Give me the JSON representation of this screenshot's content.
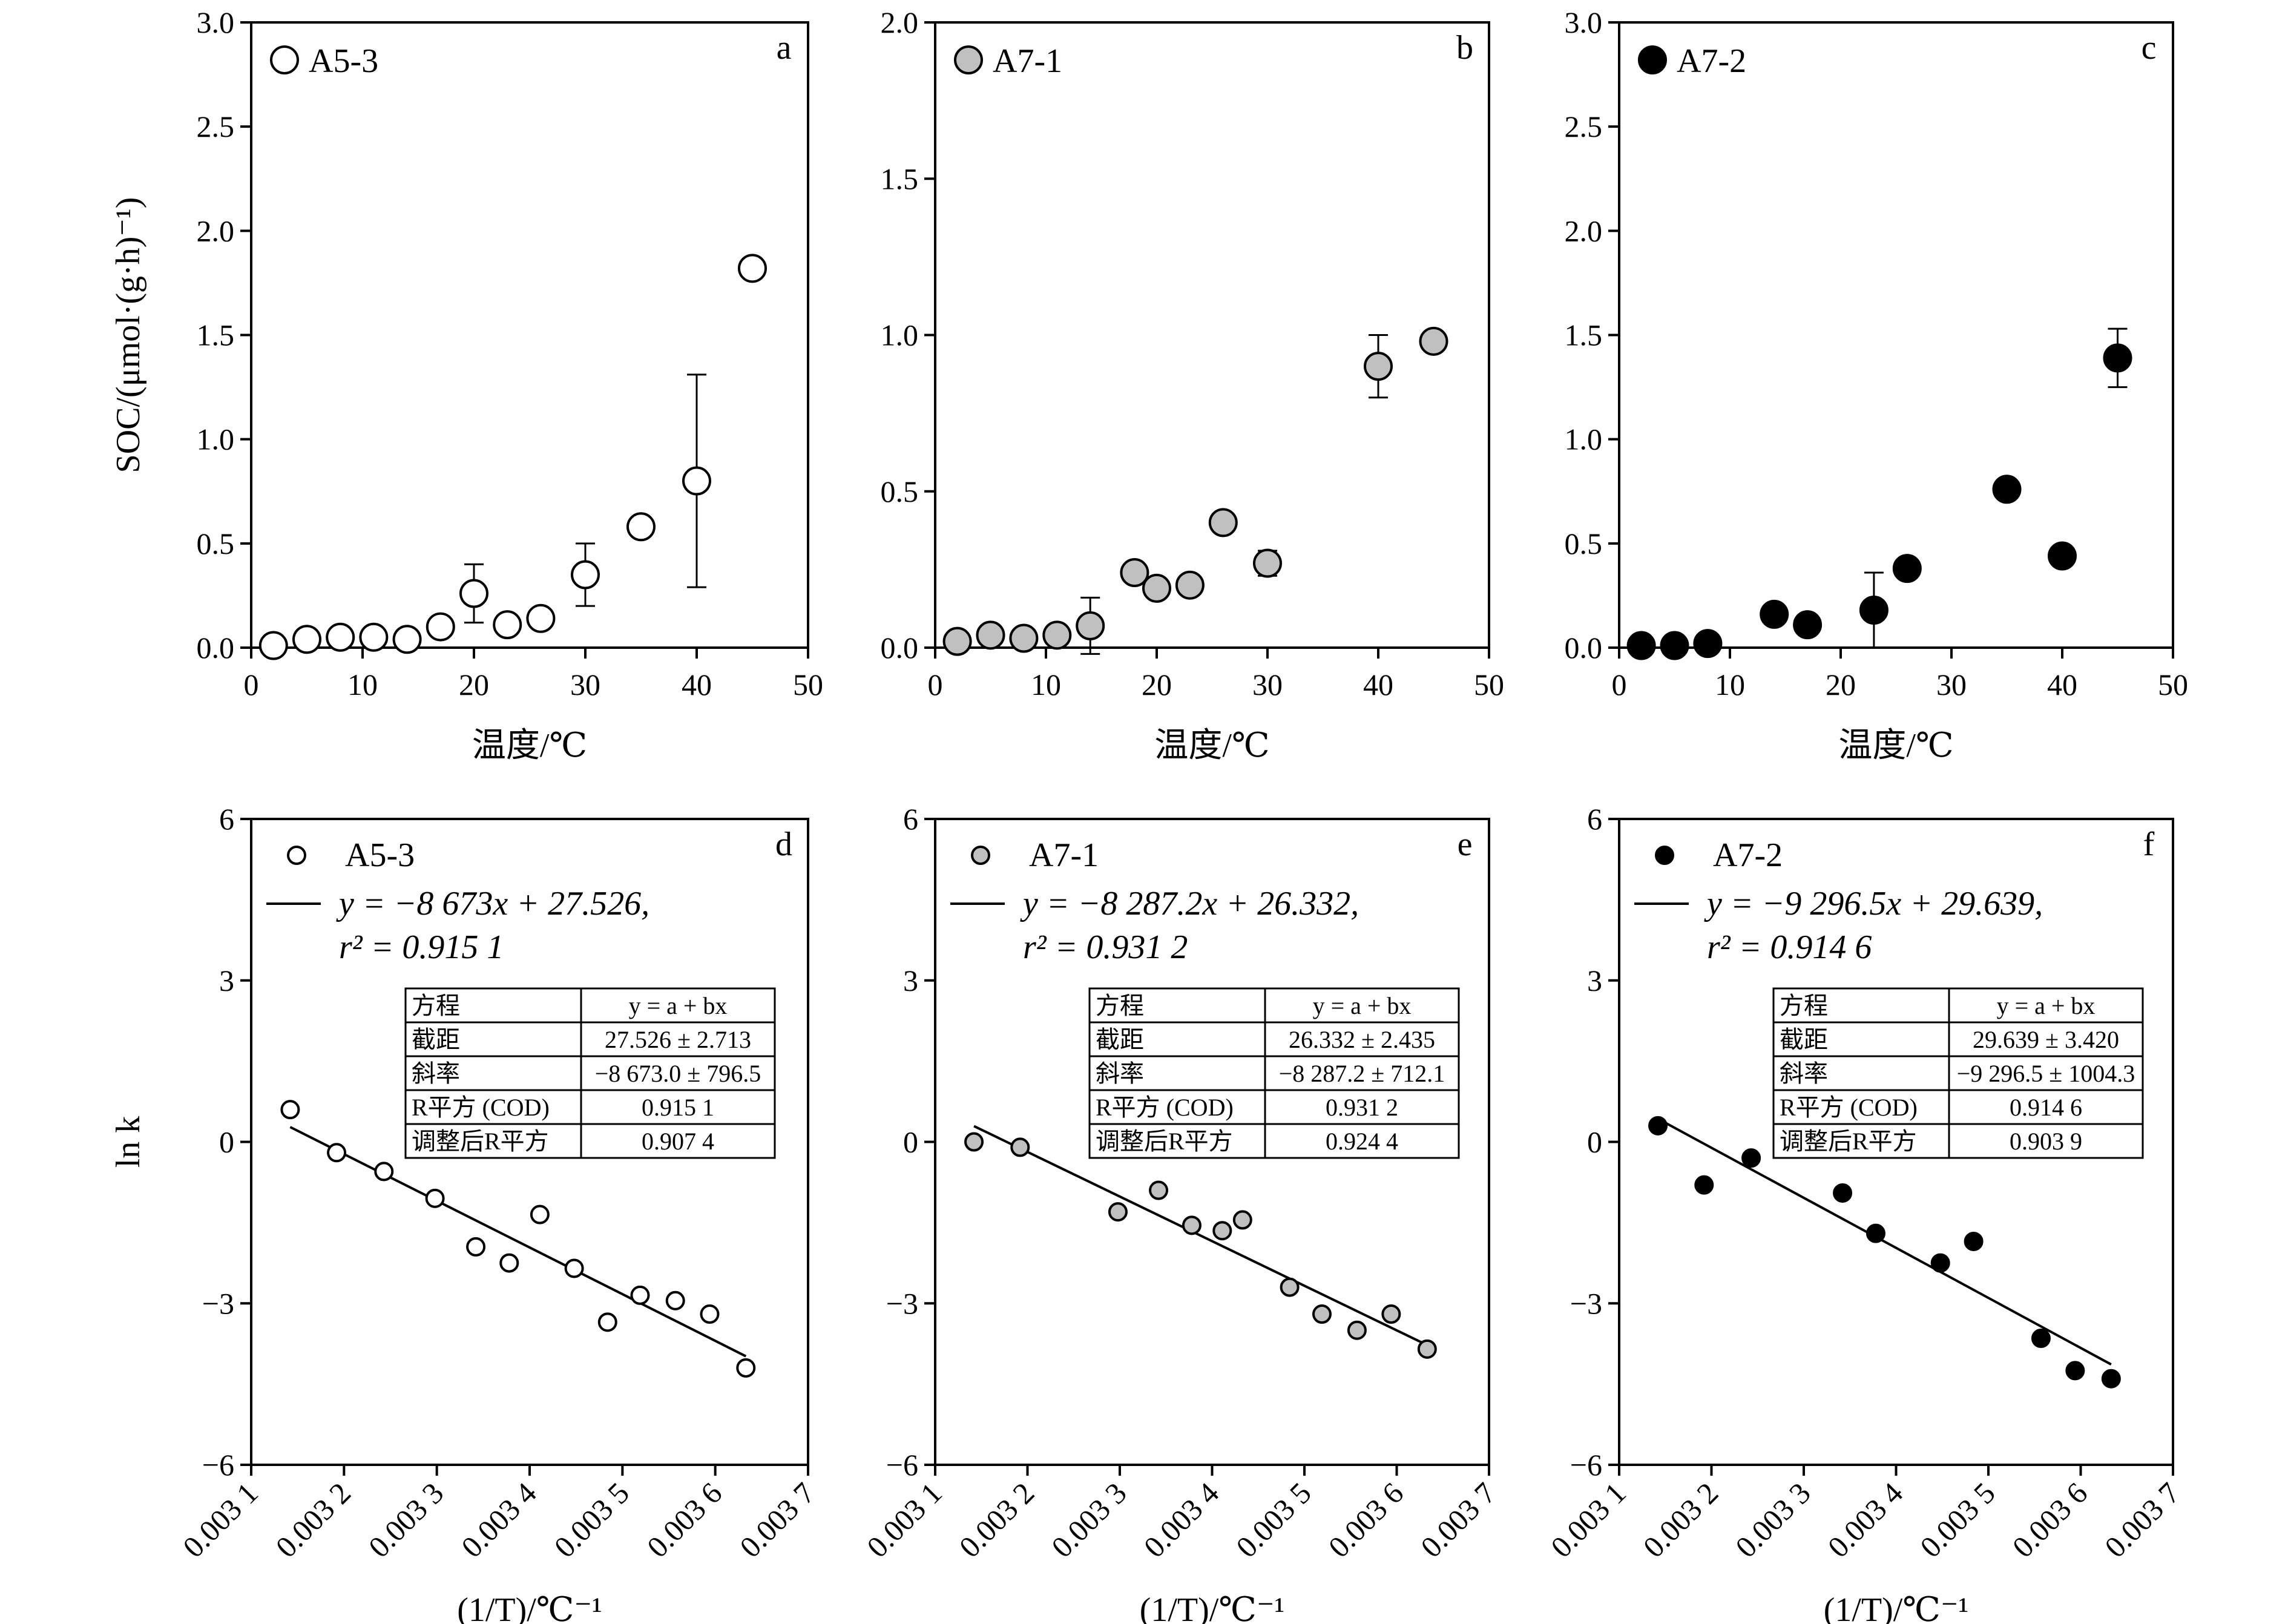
{
  "panels": [
    {
      "letter": "a",
      "label": "A5-3",
      "xticks": [
        "0",
        "10",
        "20",
        "30",
        "40",
        "50"
      ],
      "yticks": [
        "0.0",
        "0.5",
        "1.0",
        "1.5",
        "2.0",
        "2.5",
        "3.0"
      ],
      "ylabel": "SOC/(μmol·(g·h)⁻¹)",
      "xlabel": "温度/℃"
    },
    {
      "letter": "b",
      "label": "A7-1",
      "xticks": [
        "0",
        "10",
        "20",
        "30",
        "40",
        "50"
      ],
      "yticks": [
        "0.0",
        "0.5",
        "1.0",
        "1.5",
        "2.0"
      ],
      "xlabel": "温度/℃"
    },
    {
      "letter": "c",
      "label": "A7-2",
      "xticks": [
        "0",
        "10",
        "20",
        "30",
        "40",
        "50"
      ],
      "yticks": [
        "0.0",
        "0.5",
        "1.0",
        "1.5",
        "2.0",
        "2.5",
        "3.0"
      ],
      "xlabel": "温度/℃"
    },
    {
      "letter": "d",
      "label": "A5-3",
      "eq1": "y = −8 673x + 27.526,",
      "eq2": "r² = 0.915 1",
      "xticks": [
        "0.003 1",
        "0.003 2",
        "0.003 3",
        "0.003 4",
        "0.003 5",
        "0.003 6",
        "0.003 7"
      ],
      "yticks": [
        "−6",
        "−3",
        "0",
        "3",
        "6"
      ],
      "ylabel": "ln k",
      "xlabel": "(1/T)/℃⁻¹",
      "table": [
        [
          "方程",
          "y = a + bx"
        ],
        [
          "截距",
          "27.526 ± 2.713"
        ],
        [
          "斜率",
          "−8 673.0 ± 796.5"
        ],
        [
          "R平方 (COD)",
          "0.915 1"
        ],
        [
          "调整后R平方",
          "0.907 4"
        ]
      ]
    },
    {
      "letter": "e",
      "label": "A7-1",
      "eq1": "y = −8 287.2x + 26.332,",
      "eq2": "r² = 0.931 2",
      "xticks": [
        "0.003 1",
        "0.003 2",
        "0.003 3",
        "0.003 4",
        "0.003 5",
        "0.003 6",
        "0.003 7"
      ],
      "yticks": [
        "−6",
        "−3",
        "0",
        "3",
        "6"
      ],
      "xlabel": "(1/T)/℃⁻¹",
      "table": [
        [
          "方程",
          "y = a + bx"
        ],
        [
          "截距",
          "26.332 ± 2.435"
        ],
        [
          "斜率",
          "−8 287.2 ± 712.1"
        ],
        [
          "R平方 (COD)",
          "0.931 2"
        ],
        [
          "调整后R平方",
          "0.924 4"
        ]
      ]
    },
    {
      "letter": "f",
      "label": "A7-2",
      "eq1": "y = −9 296.5x + 29.639,",
      "eq2": "r² = 0.914 6",
      "xticks": [
        "0.003 1",
        "0.003 2",
        "0.003 3",
        "0.003 4",
        "0.003 5",
        "0.003 6",
        "0.003 7"
      ],
      "yticks": [
        "−6",
        "−3",
        "0",
        "3",
        "6"
      ],
      "xlabel": "(1/T)/℃⁻¹",
      "table": [
        [
          "方程",
          "y = a + bx"
        ],
        [
          "截距",
          "29.639 ± 3.420"
        ],
        [
          "斜率",
          "−9 296.5 ± 1004.3"
        ],
        [
          "R平方 (COD)",
          "0.914 6"
        ],
        [
          "调整后R平方",
          "0.903 9"
        ]
      ]
    }
  ],
  "chart_data": [
    {
      "type": "scatter",
      "panel": "a",
      "series": [
        {
          "name": "A5-3",
          "marker_color": "#ffffff"
        }
      ],
      "xlim": [
        0,
        50
      ],
      "ylim": [
        0,
        3.0
      ],
      "x": [
        2,
        5,
        8,
        11,
        14,
        17,
        20,
        23,
        26,
        30,
        35,
        40,
        45
      ],
      "y": [
        0.01,
        0.04,
        0.05,
        0.05,
        0.04,
        0.1,
        0.26,
        0.11,
        0.14,
        0.35,
        0.58,
        0.8,
        1.82
      ],
      "error": [
        0,
        0,
        0,
        0,
        0,
        0,
        0.14,
        0,
        0,
        0.15,
        0,
        0.51,
        0
      ]
    },
    {
      "type": "scatter",
      "panel": "b",
      "series": [
        {
          "name": "A7-1",
          "marker_color": "#c0c0c0"
        }
      ],
      "xlim": [
        0,
        50
      ],
      "ylim": [
        0,
        2.0
      ],
      "x": [
        2,
        5,
        8,
        11,
        14,
        18,
        20,
        23,
        26,
        30,
        40,
        45
      ],
      "y": [
        0.02,
        0.04,
        0.03,
        0.04,
        0.07,
        0.24,
        0.19,
        0.2,
        0.4,
        0.27,
        0.9,
        0.98
      ],
      "error": [
        0,
        0,
        0,
        0,
        0.09,
        0,
        0,
        0,
        0,
        0.04,
        0.1,
        0
      ]
    },
    {
      "type": "scatter",
      "panel": "c",
      "series": [
        {
          "name": "A7-2",
          "marker_color": "#000000"
        }
      ],
      "xlim": [
        0,
        50
      ],
      "ylim": [
        0,
        3.0
      ],
      "x": [
        2,
        5,
        8,
        14,
        17,
        23,
        26,
        35,
        40,
        45
      ],
      "y": [
        0.01,
        0.01,
        0.02,
        0.16,
        0.11,
        0.18,
        0.38,
        0.76,
        0.44,
        1.39
      ],
      "error": [
        0,
        0,
        0,
        0,
        0,
        0.18,
        0,
        0,
        0,
        0.14
      ]
    },
    {
      "type": "scatter",
      "panel": "d",
      "series": [
        {
          "name": "A5-3",
          "marker_color": "#ffffff"
        }
      ],
      "xlim": [
        0.0031,
        0.0037
      ],
      "ylim": [
        -6,
        6
      ],
      "x": [
        0.003142,
        0.003192,
        0.003243,
        0.003298,
        0.003342,
        0.003378,
        0.003411,
        0.003448,
        0.003484,
        0.003519,
        0.003557,
        0.003594,
        0.003633
      ],
      "y": [
        0.6,
        -0.2,
        -0.55,
        -1.05,
        -1.95,
        -2.25,
        -1.35,
        -2.35,
        -3.35,
        -2.85,
        -2.95,
        -3.2,
        -4.2
      ],
      "fit": {
        "slope": -8673,
        "intercept": 27.526
      }
    },
    {
      "type": "scatter",
      "panel": "e",
      "series": [
        {
          "name": "A7-1",
          "marker_color": "#c0c0c0"
        }
      ],
      "xlim": [
        0.0031,
        0.0037
      ],
      "ylim": [
        -6,
        6
      ],
      "x": [
        0.003142,
        0.003192,
        0.003298,
        0.003342,
        0.003378,
        0.003411,
        0.003433,
        0.003484,
        0.003519,
        0.003557,
        0.003594,
        0.003633
      ],
      "y": [
        0,
        -0.1,
        -1.3,
        -0.9,
        -1.55,
        -1.65,
        -1.45,
        -2.7,
        -3.2,
        -3.5,
        -3.2,
        -3.85
      ],
      "fit": {
        "slope": -8287.2,
        "intercept": 26.332
      }
    },
    {
      "type": "scatter",
      "panel": "f",
      "series": [
        {
          "name": "A7-2",
          "marker_color": "#000000"
        }
      ],
      "xlim": [
        0.0031,
        0.0037
      ],
      "ylim": [
        -6,
        6
      ],
      "x": [
        0.003142,
        0.003192,
        0.003243,
        0.003342,
        0.003378,
        0.003448,
        0.003484,
        0.003557,
        0.003594,
        0.003633
      ],
      "y": [
        0.3,
        -0.8,
        -0.3,
        -0.95,
        -1.7,
        -2.25,
        -1.85,
        -3.65,
        -4.25,
        -4.4
      ],
      "fit": {
        "slope": -9296.5,
        "intercept": 29.639
      }
    }
  ]
}
